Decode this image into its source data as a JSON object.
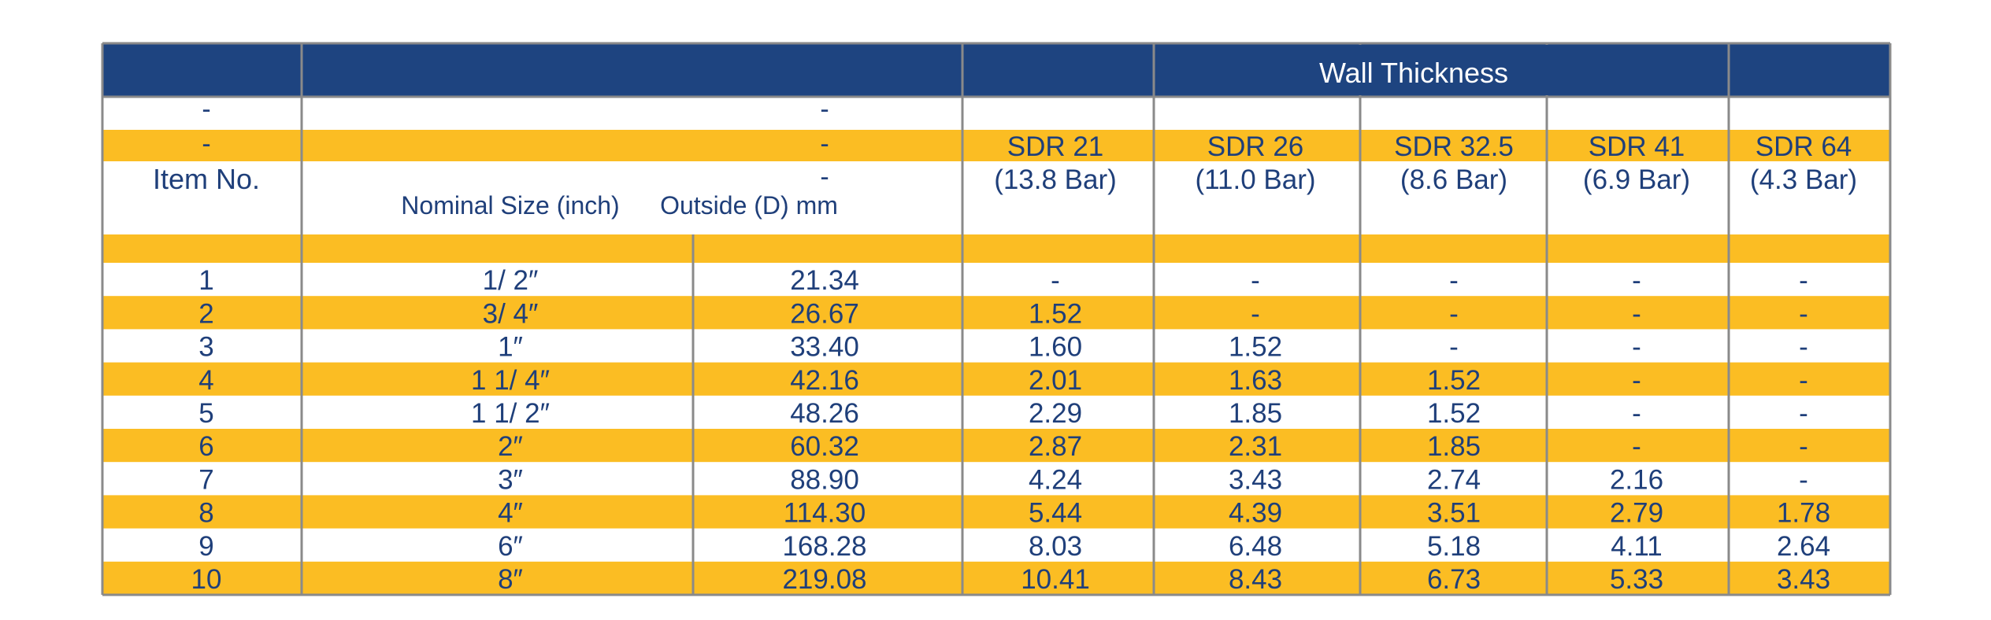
{
  "colors": {
    "navy": "#1e4480",
    "gold": "#fbbd23",
    "white": "#ffffff",
    "text": "#1f3f7a",
    "grid": "#8a8a8a"
  },
  "table": {
    "group_header": "Wall Thickness",
    "dash": "-",
    "item_header": "Item No.",
    "nominal_header": "Nominal Size (inch)",
    "outside_header": "Outside (D) mm",
    "sdr": [
      {
        "name": "SDR 21",
        "bar": "(13.8 Bar)"
      },
      {
        "name": "SDR 26",
        "bar": "(11.0 Bar)"
      },
      {
        "name": "SDR 32.5",
        "bar": "(8.6 Bar)"
      },
      {
        "name": "SDR 41",
        "bar": "(6.9 Bar)"
      },
      {
        "name": "SDR 64",
        "bar": "(4.3 Bar)"
      }
    ],
    "rows": [
      {
        "item": "1",
        "nominal": "1/ 2″",
        "outside": "21.34",
        "walls": [
          "-",
          "-",
          "-",
          "-",
          "-"
        ]
      },
      {
        "item": "2",
        "nominal": "3/ 4″",
        "outside": "26.67",
        "walls": [
          "1.52",
          "-",
          "-",
          "-",
          "-"
        ]
      },
      {
        "item": "3",
        "nominal": "1″",
        "outside": "33.40",
        "walls": [
          "1.60",
          "1.52",
          "-",
          "-",
          "-"
        ]
      },
      {
        "item": "4",
        "nominal": "1 1/ 4″",
        "outside": "42.16",
        "walls": [
          "2.01",
          "1.63",
          "1.52",
          "-",
          "-"
        ]
      },
      {
        "item": "5",
        "nominal": "1 1/ 2″",
        "outside": "48.26",
        "walls": [
          "2.29",
          "1.85",
          "1.52",
          "-",
          "-"
        ]
      },
      {
        "item": "6",
        "nominal": "2″",
        "outside": "60.32",
        "walls": [
          "2.87",
          "2.31",
          "1.85",
          "-",
          "-"
        ]
      },
      {
        "item": "7",
        "nominal": "3″",
        "outside": "88.90",
        "walls": [
          "4.24",
          "3.43",
          "2.74",
          "2.16",
          "-"
        ]
      },
      {
        "item": "8",
        "nominal": "4″",
        "outside": "114.30",
        "walls": [
          "5.44",
          "4.39",
          "3.51",
          "2.79",
          "1.78"
        ]
      },
      {
        "item": "9",
        "nominal": "6″",
        "outside": "168.28",
        "walls": [
          "8.03",
          "6.48",
          "5.18",
          "4.11",
          "2.64"
        ]
      },
      {
        "item": "10",
        "nominal": "8″",
        "outside": "219.08",
        "walls": [
          "10.41",
          "8.43",
          "6.73",
          "5.33",
          "3.43"
        ]
      }
    ]
  }
}
